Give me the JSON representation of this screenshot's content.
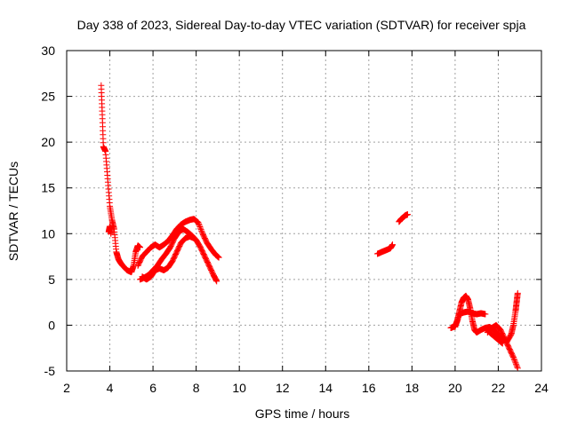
{
  "chart_data": {
    "type": "scatter",
    "title": "Day 338 of 2023, Sidereal Day-to-day VTEC variation (SDTVAR) for receiver spja",
    "xlabel": "GPS time / hours",
    "ylabel": "SDTVAR / TECUs",
    "xlim": [
      2,
      24
    ],
    "ylim": [
      -5,
      30
    ],
    "xticks": [
      2,
      4,
      6,
      8,
      10,
      12,
      14,
      16,
      18,
      20,
      22,
      24
    ],
    "yticks": [
      -5,
      0,
      5,
      10,
      15,
      20,
      25,
      30
    ],
    "grid": true,
    "marker": "+",
    "marker_color": "#ff0000",
    "series": [
      {
        "name": "spja",
        "segments": [
          {
            "x": [
              3.6,
              3.65,
              3.7,
              3.8,
              3.9,
              4.0,
              4.1,
              4.2,
              4.3,
              4.4,
              4.5,
              4.6,
              4.8,
              5.0,
              5.1,
              5.2,
              5.3,
              5.4
            ],
            "y": [
              26.2,
              23.0,
              19.5,
              19.0,
              16.0,
              13.0,
              11.5,
              10.5,
              8.0,
              7.2,
              6.8,
              6.5,
              6.0,
              5.8,
              6.5,
              8.0,
              8.7,
              8.5
            ]
          },
          {
            "x": [
              3.95,
              4.0,
              4.05
            ],
            "y": [
              10.2,
              10.8,
              10.0
            ]
          },
          {
            "x": [
              5.3,
              5.5,
              5.7,
              5.9,
              6.1,
              6.3,
              6.5,
              6.7,
              6.9,
              7.1,
              7.3,
              7.5,
              7.7,
              7.9,
              8.1,
              8.3,
              8.5,
              8.7,
              8.9,
              9.05
            ],
            "y": [
              6.5,
              7.5,
              8.0,
              8.5,
              8.8,
              8.5,
              8.8,
              9.2,
              9.8,
              10.5,
              11.0,
              11.3,
              11.5,
              11.6,
              11.2,
              10.0,
              9.0,
              8.3,
              7.7,
              7.4
            ]
          },
          {
            "x": [
              5.4,
              5.6,
              5.8,
              6.0,
              6.2,
              6.4,
              6.6,
              6.8,
              7.0,
              7.2,
              7.4,
              7.6,
              7.8,
              8.0,
              8.2,
              8.4,
              8.6,
              8.8,
              8.95
            ],
            "y": [
              5.0,
              5.2,
              5.5,
              6.0,
              6.5,
              7.2,
              7.8,
              8.5,
              9.5,
              10.2,
              10.5,
              10.2,
              9.8,
              9.3,
              8.5,
              7.5,
              6.5,
              5.5,
              4.8
            ]
          },
          {
            "x": [
              5.5,
              5.7,
              5.9,
              6.1,
              6.3,
              6.5,
              6.7,
              6.9,
              7.1,
              7.3,
              7.5,
              7.7,
              7.9
            ],
            "y": [
              5.3,
              5.0,
              5.3,
              6.0,
              6.2,
              6.0,
              6.3,
              7.0,
              8.0,
              9.0,
              9.5,
              9.7,
              9.5
            ]
          },
          {
            "x": [
              16.4,
              16.6,
              16.8,
              17.0,
              17.1
            ],
            "y": [
              7.8,
              8.0,
              8.2,
              8.4,
              8.8
            ]
          },
          {
            "x": [
              17.4,
              17.5,
              17.6,
              17.7,
              17.8
            ],
            "y": [
              11.3,
              11.6,
              11.8,
              12.0,
              12.1
            ]
          },
          {
            "x": [
              19.8,
              19.9,
              20.0,
              20.1,
              20.2,
              20.3,
              20.4,
              20.5,
              20.6,
              20.7,
              20.8,
              20.9,
              21.0,
              21.2,
              21.4,
              21.6,
              21.8,
              22.0,
              22.2,
              22.4,
              22.6,
              22.7,
              22.8,
              22.85,
              22.9
            ],
            "y": [
              -0.3,
              -0.2,
              -0.1,
              0.5,
              1.5,
              2.5,
              3.0,
              3.2,
              2.8,
              1.8,
              0.5,
              -0.5,
              -0.8,
              -0.5,
              -0.3,
              -0.2,
              -0.5,
              -1.0,
              -1.5,
              -1.8,
              -1.0,
              0.0,
              1.5,
              2.5,
              3.5
            ]
          },
          {
            "x": [
              20.0,
              20.2,
              20.4,
              20.6,
              20.8,
              21.0,
              21.2,
              21.4
            ],
            "y": [
              -0.2,
              1.2,
              1.4,
              1.5,
              1.3,
              1.2,
              1.3,
              1.2
            ]
          },
          {
            "x": [
              21.5,
              21.7,
              21.9,
              22.1,
              22.3,
              22.5,
              22.7,
              22.9
            ],
            "y": [
              -0.8,
              -0.3,
              0.0,
              -0.5,
              -1.5,
              -2.5,
              -3.5,
              -4.7
            ]
          },
          {
            "x": [
              21.6,
              21.8,
              22.0,
              22.2
            ],
            "y": [
              -0.8,
              -1.2,
              -1.6,
              -2.0
            ]
          }
        ]
      }
    ]
  }
}
